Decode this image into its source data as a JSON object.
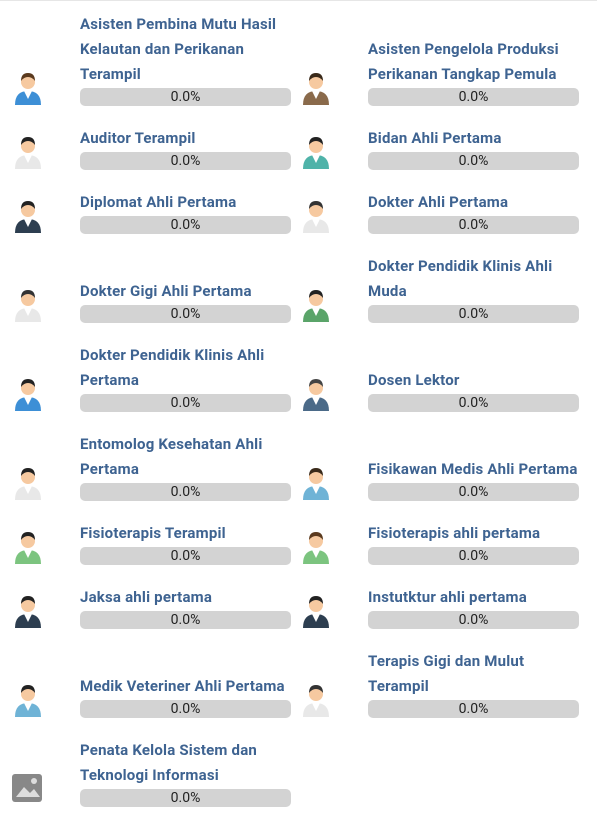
{
  "items": [
    {
      "title": "Asisten Pembina Mutu Hasil Kelautan dan Perikanan Terampil",
      "progress": "0.0%"
    },
    {
      "title": "Asisten Pengelola Produksi Perikanan Tangkap Pemula",
      "progress": "0.0%"
    },
    {
      "title": "Auditor Terampil",
      "progress": "0.0%"
    },
    {
      "title": "Bidan Ahli Pertama",
      "progress": "0.0%"
    },
    {
      "title": "Diplomat Ahli Pertama",
      "progress": "0.0%"
    },
    {
      "title": "Dokter Ahli Pertama",
      "progress": "0.0%"
    },
    {
      "title": "Dokter Gigi Ahli Pertama",
      "progress": "0.0%"
    },
    {
      "title": "Dokter Pendidik Klinis Ahli Muda",
      "progress": "0.0%"
    },
    {
      "title": "Dokter Pendidik Klinis Ahli Pertama",
      "progress": "0.0%"
    },
    {
      "title": "Dosen Lektor",
      "progress": "0.0%"
    },
    {
      "title": "Entomolog Kesehatan Ahli Pertama",
      "progress": "0.0%"
    },
    {
      "title": "Fisikawan Medis Ahli Pertama",
      "progress": "0.0%"
    },
    {
      "title": "Fisioterapis Terampil",
      "progress": "0.0%"
    },
    {
      "title": "Fisioterapis ahli pertama",
      "progress": "0.0%"
    },
    {
      "title": "Jaksa ahli pertama",
      "progress": "0.0%"
    },
    {
      "title": "Instutktur ahli pertama",
      "progress": "0.0%"
    },
    {
      "title": "Medik Veteriner Ahli Pertama",
      "progress": "0.0%"
    },
    {
      "title": "Terapis Gigi dan Mulut Terampil",
      "progress": "0.0%"
    },
    {
      "title": "Penata Kelola Sistem dan Teknologi Informasi",
      "progress": "0.0%"
    }
  ]
}
